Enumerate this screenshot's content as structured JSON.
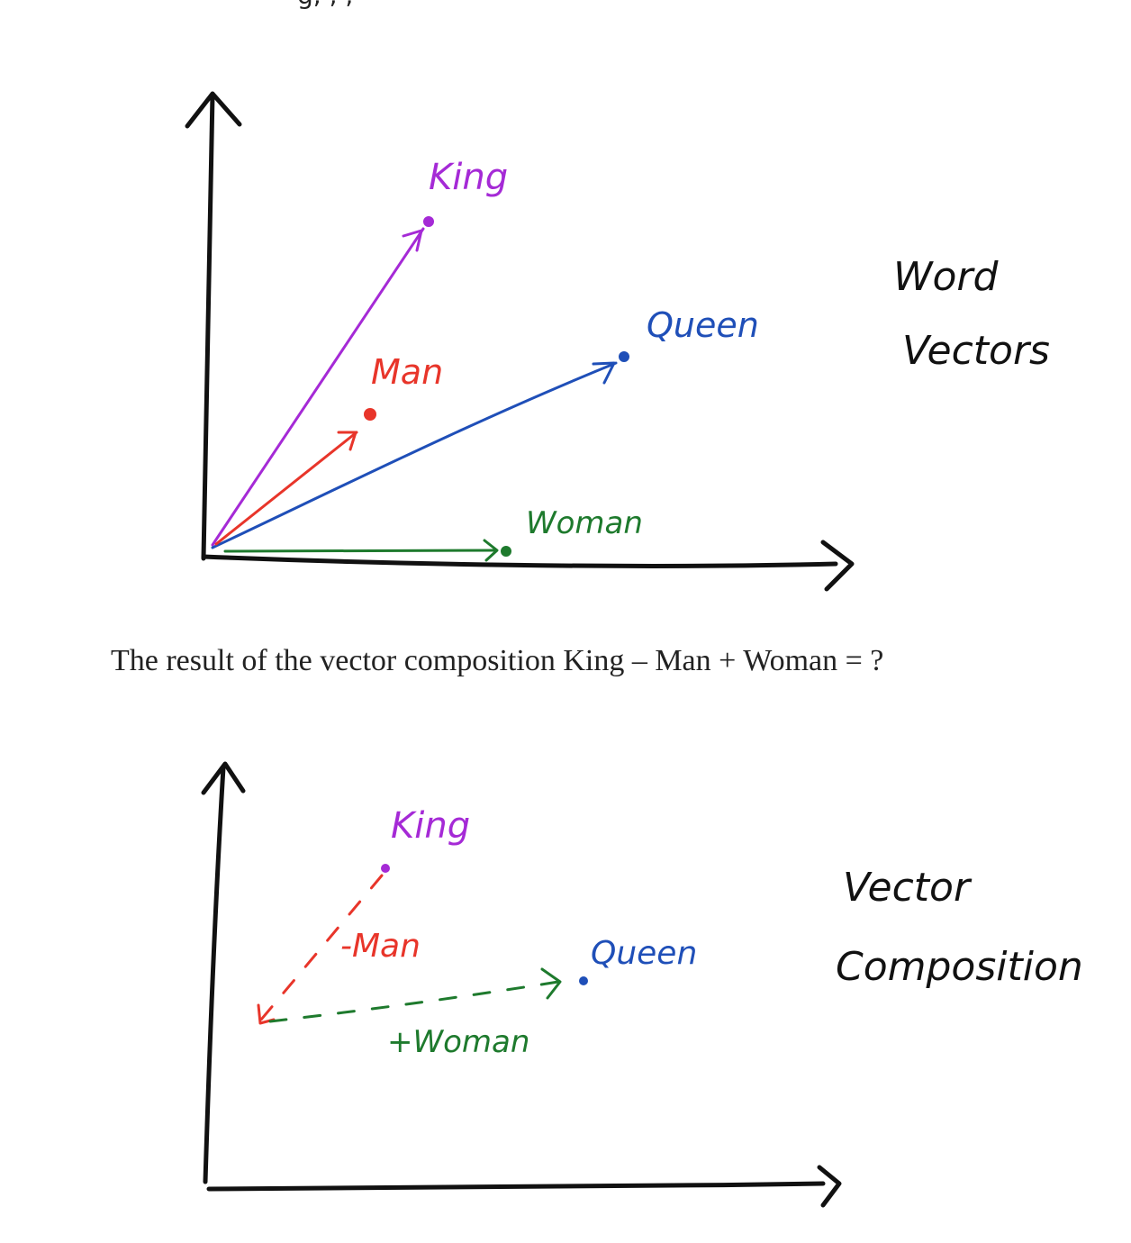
{
  "top_fragment": "g, , ,",
  "diagram1": {
    "title_line1": "Word",
    "title_line2": "Vectors",
    "labels": {
      "king": "King",
      "queen": "Queen",
      "man": "Man",
      "woman": "Woman"
    }
  },
  "caption": "The result of the vector composition King – Man + Woman = ?",
  "diagram2": {
    "title_line1": "Vector",
    "title_line2": "Composition",
    "labels": {
      "king": "King",
      "queen": "Queen",
      "minus_man": "-Man",
      "plus_woman": "+Woman"
    }
  },
  "colors": {
    "king": "#a52ad6",
    "queen": "#1f4fb8",
    "man": "#e8352a",
    "woman": "#1e7a2d",
    "axis": "#111111"
  }
}
